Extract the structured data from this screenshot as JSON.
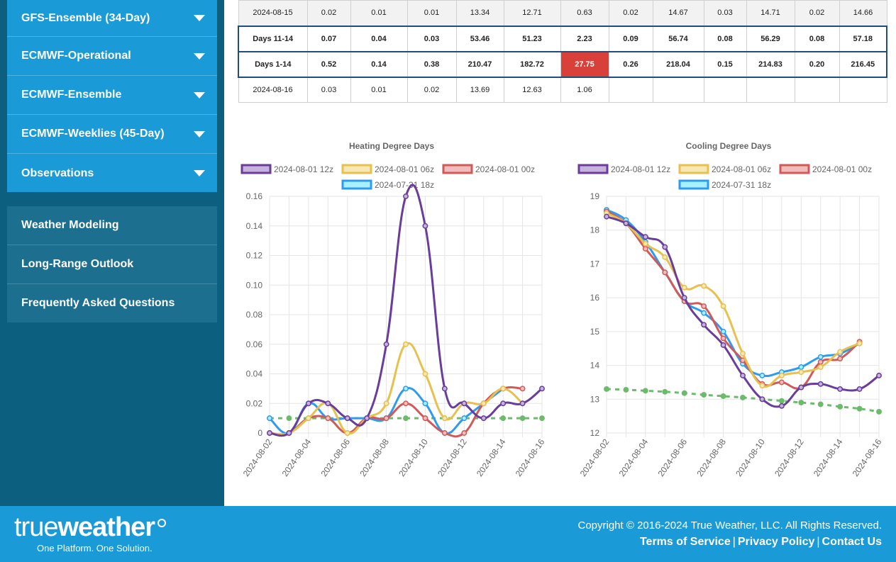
{
  "sidebar": {
    "models": [
      {
        "label": "GFS-Ensemble (34-Day)"
      },
      {
        "label": "ECMWF-Operational"
      },
      {
        "label": "ECMWF-Ensemble"
      },
      {
        "label": "ECMWF-Weeklies (45-Day)"
      },
      {
        "label": "Observations"
      }
    ],
    "info": [
      {
        "label": "Weather Modeling"
      },
      {
        "label": "Long-Range Outlook"
      },
      {
        "label": "Frequently Asked Questions"
      }
    ]
  },
  "table": {
    "rows": [
      {
        "kind": "shade",
        "cells": [
          "2024-08-15",
          "0.02",
          "0.01",
          "0.01",
          "13.34",
          "12.71",
          "0.63",
          "0.02",
          "14.67",
          "0.03",
          "14.71",
          "0.02",
          "14.66"
        ]
      },
      {
        "kind": "sum",
        "cells": [
          "Days 11-14",
          "0.07",
          "0.04",
          "0.03",
          "53.46",
          "51.23",
          "2.23",
          "0.09",
          "56.74",
          "0.08",
          "56.29",
          "0.08",
          "57.18"
        ]
      },
      {
        "kind": "sum",
        "highlight_col": 6,
        "highlight_color": "#d9403a",
        "cells": [
          "Days 1-14",
          "0.52",
          "0.14",
          "0.38",
          "210.47",
          "182.72",
          "27.75",
          "0.26",
          "218.04",
          "0.15",
          "214.83",
          "0.20",
          "216.45"
        ]
      },
      {
        "kind": "date",
        "cells": [
          "2024-08-16",
          "0.03",
          "0.01",
          "0.02",
          "13.69",
          "12.63",
          "1.06",
          "",
          "",
          "",
          "",
          "",
          ""
        ]
      }
    ]
  },
  "chart_data": [
    {
      "type": "line",
      "title": "Heating Degree Days",
      "x": [
        "2024-08-02",
        "2024-08-03",
        "2024-08-04",
        "2024-08-05",
        "2024-08-06",
        "2024-08-07",
        "2024-08-08",
        "2024-08-09",
        "2024-08-10",
        "2024-08-11",
        "2024-08-12",
        "2024-08-13",
        "2024-08-14",
        "2024-08-15",
        "2024-08-16"
      ],
      "x_tick_labels": [
        "2024-08-02",
        "2024-08-04",
        "2024-08-06",
        "2024-08-08",
        "2024-08-10",
        "2024-08-12",
        "2024-08-14",
        "2024-08-16"
      ],
      "ylim": [
        0,
        0.16
      ],
      "y_ticks": [
        "0",
        "0.02",
        "0.04",
        "0.06",
        "0.08",
        "0.10",
        "0.12",
        "0.14",
        "0.16"
      ],
      "grid": true,
      "legend_position": "top",
      "series": [
        {
          "name": "2024-08-01 12z",
          "color": "#6a3d9a",
          "fill": "#c5b3dc",
          "values": [
            0,
            0,
            0.02,
            0.02,
            0.01,
            0.01,
            0.06,
            0.16,
            0.14,
            0.03,
            0.02,
            0.01,
            0.02,
            0.02,
            0.03
          ]
        },
        {
          "name": "2024-08-01 06z",
          "color": "#e6c14f",
          "fill": "#f6e7b4",
          "values": [
            0,
            0,
            0.01,
            0.02,
            0,
            0.01,
            0.02,
            0.06,
            0.04,
            0.01,
            0.02,
            0.02,
            0.03,
            0.02,
            null
          ]
        },
        {
          "name": "2024-08-01 00z",
          "color": "#d05a5a",
          "fill": "#f0bcbc",
          "values": [
            0,
            0,
            0.01,
            0.01,
            0,
            0.01,
            0.01,
            0.02,
            0.01,
            0,
            0,
            0.02,
            0.03,
            0.03,
            null
          ]
        },
        {
          "name": "2024-07-31 18z",
          "color": "#2f9bf0",
          "fill": "#a9f0ff",
          "values": [
            0.01,
            0,
            0.02,
            0.01,
            0.01,
            0.01,
            0.01,
            0.03,
            0.02,
            0,
            0.01,
            0.02,
            0.03,
            null,
            null
          ]
        },
        {
          "name": "",
          "color": "#6cbb6c",
          "dashed": true,
          "values": [
            0.01,
            0.01,
            0.01,
            0.01,
            0.01,
            0.01,
            0.01,
            0.01,
            0.01,
            0.01,
            0.01,
            0.01,
            0.01,
            0.01,
            0.01
          ]
        }
      ]
    },
    {
      "type": "line",
      "title": "Cooling Degree Days",
      "x": [
        "2024-08-02",
        "2024-08-03",
        "2024-08-04",
        "2024-08-05",
        "2024-08-06",
        "2024-08-07",
        "2024-08-08",
        "2024-08-09",
        "2024-08-10",
        "2024-08-11",
        "2024-08-12",
        "2024-08-13",
        "2024-08-14",
        "2024-08-15",
        "2024-08-16"
      ],
      "x_tick_labels": [
        "2024-08-02",
        "2024-08-04",
        "2024-08-06",
        "2024-08-08",
        "2024-08-10",
        "2024-08-12",
        "2024-08-14",
        "2024-08-16"
      ],
      "ylim": [
        12,
        19
      ],
      "y_ticks": [
        "12",
        "13",
        "14",
        "15",
        "16",
        "17",
        "18",
        "19"
      ],
      "grid": true,
      "legend_position": "top",
      "series": [
        {
          "name": "2024-08-01 12z",
          "color": "#6a3d9a",
          "fill": "#c5b3dc",
          "values": [
            18.4,
            18.2,
            17.8,
            17.5,
            16.0,
            15.2,
            14.6,
            13.7,
            13.0,
            12.8,
            13.35,
            13.45,
            13.3,
            13.3,
            13.7
          ]
        },
        {
          "name": "2024-08-01 06z",
          "color": "#e6c14f",
          "fill": "#f6e7b4",
          "values": [
            18.5,
            18.2,
            17.6,
            17.2,
            16.3,
            16.35,
            15.75,
            14.35,
            13.4,
            13.7,
            13.8,
            13.95,
            14.4,
            14.65,
            null
          ]
        },
        {
          "name": "2024-08-01 00z",
          "color": "#d05a5a",
          "fill": "#f0bcbc",
          "values": [
            18.55,
            18.2,
            17.45,
            16.75,
            15.9,
            15.75,
            14.8,
            14.15,
            13.45,
            13.5,
            13.35,
            14.1,
            14.2,
            14.7,
            null
          ]
        },
        {
          "name": "2024-07-31 18z",
          "color": "#2f9bf0",
          "fill": "#a9f0ff",
          "values": [
            18.6,
            18.3,
            17.65,
            16.75,
            15.9,
            15.55,
            15.0,
            14.05,
            13.7,
            13.8,
            13.95,
            14.25,
            14.35,
            14.65,
            null
          ]
        },
        {
          "name": "",
          "color": "#6cbb6c",
          "dashed": true,
          "values": [
            13.3,
            13.28,
            13.25,
            13.22,
            13.18,
            13.13,
            13.09,
            13.05,
            13.0,
            12.95,
            12.9,
            12.85,
            12.78,
            12.72,
            12.63
          ]
        }
      ]
    }
  ],
  "footer": {
    "logo_light": "true",
    "logo_bold": "weather",
    "tagline": "One Platform. One Solution.",
    "copyright": "Copyright © 2016-2024 True Weather, LLC. All Rights Reserved.",
    "links": [
      "Terms of Service",
      "Privacy Policy",
      "Contact Us"
    ],
    "separator": "|"
  }
}
